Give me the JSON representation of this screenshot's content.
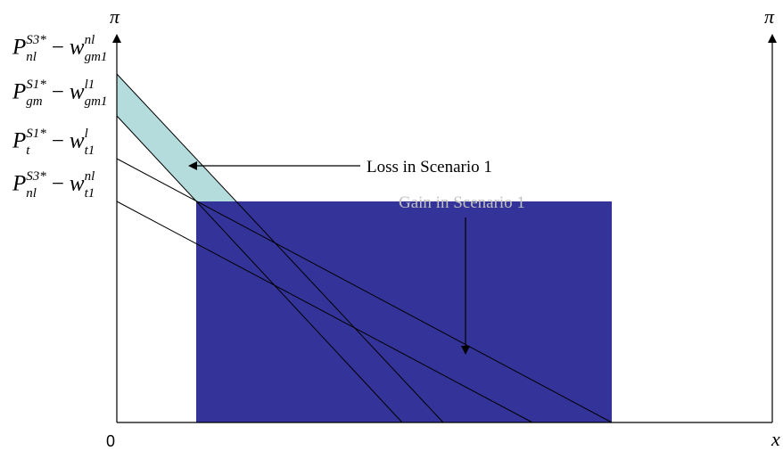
{
  "diagram": {
    "axis_symbol_left": "π",
    "axis_symbol_right": "π",
    "x_axis_label": "x",
    "origin_label": "0",
    "price_labels": [
      {
        "base": "P",
        "sup": "S3*",
        "sub": "nl",
        "w_sup": "nl",
        "w_sub": "gm1"
      },
      {
        "base": "P",
        "sup": "S1*",
        "sub": "gm",
        "w_sup": "l1",
        "w_sub": "gm1"
      },
      {
        "base": "P",
        "sup": "S1*",
        "sub": "t",
        "w_sup": "l",
        "w_sub": "t1"
      },
      {
        "base": "P",
        "sup": "S3*",
        "sub": "nl",
        "w_sup": "nl",
        "w_sub": "t1"
      }
    ],
    "minus_sign": "−",
    "w_symbol": "w",
    "loss_label": "Loss in Scenario 1",
    "gain_label": "Gain in Scenario 1",
    "colors": {
      "gain_fill": "#333399",
      "loss_fill": "#b4dcdc",
      "line": "#000000"
    }
  }
}
